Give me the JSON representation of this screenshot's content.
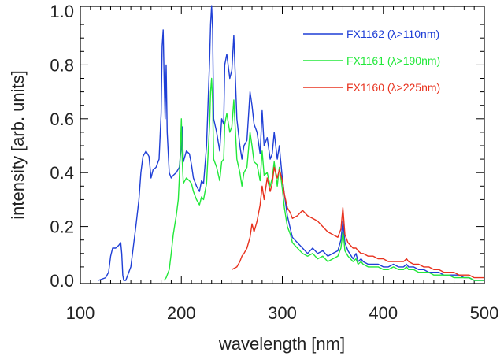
{
  "chart_data": {
    "type": "line",
    "xlabel": "wavelength [nm]",
    "ylabel": "intensity [arb. units]",
    "xlim": [
      100,
      500
    ],
    "ylim": [
      0,
      1.0
    ],
    "x_ticks": [
      100,
      200,
      300,
      400,
      500
    ],
    "x_tick_labels": [
      "100",
      "200",
      "300",
      "400",
      "500"
    ],
    "y_ticks": [
      0.0,
      0.2,
      0.4,
      0.6,
      0.8,
      1.0
    ],
    "y_tick_labels": [
      "0.0",
      "0.2",
      "0.4",
      "0.6",
      "0.8",
      "1.0"
    ],
    "grid": false,
    "legend_position": "top-right",
    "series": [
      {
        "name": "FX1162 (λ>110nm)",
        "color": "#1f3fd6",
        "x": [
          118,
          125,
          128,
          130,
          132,
          135,
          138,
          140,
          141,
          142,
          143,
          145,
          150,
          155,
          158,
          160,
          162,
          165,
          168,
          170,
          172,
          175,
          178,
          180,
          181,
          182,
          183,
          184,
          185,
          186,
          188,
          190,
          192,
          195,
          198,
          200,
          201,
          202,
          205,
          208,
          210,
          212,
          215,
          218,
          220,
          222,
          225,
          228,
          229,
          230,
          231,
          232,
          235,
          238,
          240,
          242,
          243,
          245,
          248,
          250,
          252,
          255,
          258,
          260,
          262,
          265,
          268,
          270,
          272,
          275,
          278,
          280,
          282,
          285,
          288,
          290,
          292,
          295,
          297,
          298,
          300,
          302,
          305,
          308,
          310,
          315,
          320,
          325,
          330,
          335,
          340,
          345,
          350,
          355,
          358,
          360,
          361,
          362,
          365,
          370,
          373,
          375,
          378,
          380,
          385,
          390,
          395,
          400,
          405,
          410,
          415,
          420,
          423,
          425,
          430,
          435,
          440,
          445,
          450,
          455,
          460,
          465,
          470,
          475,
          480,
          485,
          490,
          495,
          500
        ],
        "y": [
          0.0,
          0.01,
          0.03,
          0.09,
          0.12,
          0.12,
          0.13,
          0.14,
          0.1,
          0.02,
          0.0,
          0.0,
          0.05,
          0.2,
          0.3,
          0.4,
          0.46,
          0.48,
          0.46,
          0.38,
          0.41,
          0.42,
          0.45,
          0.62,
          0.87,
          0.93,
          0.75,
          0.6,
          0.8,
          0.55,
          0.4,
          0.38,
          0.39,
          0.4,
          0.42,
          0.5,
          0.57,
          0.44,
          0.48,
          0.47,
          0.43,
          0.38,
          0.35,
          0.33,
          0.37,
          0.36,
          0.5,
          0.82,
          0.95,
          1.02,
          0.93,
          0.6,
          0.55,
          0.48,
          0.6,
          0.58,
          0.8,
          0.84,
          0.75,
          0.78,
          0.91,
          0.6,
          0.5,
          0.45,
          0.5,
          0.52,
          0.7,
          0.65,
          0.58,
          0.55,
          0.47,
          0.63,
          0.5,
          0.53,
          0.45,
          0.47,
          0.55,
          0.45,
          0.5,
          0.46,
          0.38,
          0.32,
          0.24,
          0.19,
          0.16,
          0.14,
          0.12,
          0.1,
          0.12,
          0.1,
          0.11,
          0.09,
          0.1,
          0.11,
          0.15,
          0.22,
          0.18,
          0.14,
          0.11,
          0.08,
          0.1,
          0.07,
          0.08,
          0.07,
          0.06,
          0.06,
          0.06,
          0.05,
          0.05,
          0.06,
          0.05,
          0.05,
          0.06,
          0.05,
          0.05,
          0.04,
          0.04,
          0.03,
          0.03,
          0.03,
          0.02,
          0.02,
          0.02,
          0.02,
          0.01,
          0.01,
          0.0,
          0.0,
          0.0
        ]
      },
      {
        "name": "FX1161 (λ>190nm)",
        "color": "#22e83a",
        "x": [
          183,
          185,
          188,
          190,
          192,
          195,
          197,
          198,
          199,
          200,
          201,
          202,
          205,
          208,
          210,
          212,
          215,
          218,
          220,
          222,
          225,
          228,
          229,
          230,
          231,
          232,
          235,
          238,
          240,
          242,
          243,
          245,
          248,
          250,
          252,
          255,
          258,
          260,
          262,
          265,
          268,
          270,
          272,
          275,
          278,
          280,
          282,
          285,
          288,
          290,
          292,
          295,
          297,
          298,
          300,
          302,
          305,
          308,
          310,
          315,
          320,
          325,
          330,
          335,
          340,
          345,
          350,
          355,
          358,
          360,
          361,
          362,
          365,
          370,
          373,
          375,
          378,
          380,
          385,
          390,
          395,
          400,
          405,
          410,
          415,
          420,
          423,
          425,
          430,
          435,
          440,
          445,
          450,
          455,
          460,
          465,
          470,
          475,
          480,
          485,
          490,
          495,
          500
        ],
        "y": [
          0.0,
          0.01,
          0.04,
          0.1,
          0.17,
          0.24,
          0.3,
          0.38,
          0.48,
          0.6,
          0.44,
          0.36,
          0.38,
          0.37,
          0.36,
          0.33,
          0.3,
          0.28,
          0.31,
          0.3,
          0.36,
          0.58,
          0.7,
          0.75,
          0.66,
          0.45,
          0.42,
          0.37,
          0.44,
          0.45,
          0.58,
          0.62,
          0.55,
          0.57,
          0.67,
          0.45,
          0.4,
          0.35,
          0.4,
          0.42,
          0.55,
          0.5,
          0.44,
          0.43,
          0.37,
          0.48,
          0.39,
          0.4,
          0.35,
          0.38,
          0.44,
          0.35,
          0.42,
          0.4,
          0.34,
          0.27,
          0.2,
          0.17,
          0.14,
          0.12,
          0.1,
          0.09,
          0.1,
          0.08,
          0.09,
          0.07,
          0.08,
          0.09,
          0.12,
          0.18,
          0.15,
          0.11,
          0.09,
          0.07,
          0.08,
          0.06,
          0.07,
          0.06,
          0.05,
          0.05,
          0.05,
          0.04,
          0.04,
          0.05,
          0.04,
          0.04,
          0.05,
          0.04,
          0.04,
          0.03,
          0.03,
          0.03,
          0.02,
          0.02,
          0.02,
          0.02,
          0.01,
          0.01,
          0.01,
          0.01,
          0.0,
          0.0,
          0.0
        ]
      },
      {
        "name": "FX1160 (λ>225nm)",
        "color": "#e8321e",
        "x": [
          250,
          255,
          258,
          260,
          262,
          265,
          268,
          270,
          272,
          275,
          278,
          280,
          282,
          285,
          288,
          290,
          292,
          295,
          297,
          298,
          300,
          302,
          305,
          308,
          310,
          315,
          320,
          325,
          330,
          335,
          340,
          345,
          350,
          355,
          358,
          360,
          361,
          362,
          365,
          370,
          373,
          375,
          378,
          380,
          385,
          390,
          395,
          400,
          405,
          410,
          415,
          420,
          423,
          425,
          430,
          435,
          440,
          445,
          450,
          455,
          460,
          465,
          470,
          475,
          480,
          485,
          490,
          495,
          500
        ],
        "y": [
          0.04,
          0.05,
          0.07,
          0.09,
          0.1,
          0.12,
          0.16,
          0.21,
          0.18,
          0.22,
          0.28,
          0.35,
          0.3,
          0.38,
          0.33,
          0.36,
          0.42,
          0.38,
          0.41,
          0.4,
          0.37,
          0.32,
          0.27,
          0.25,
          0.23,
          0.24,
          0.26,
          0.24,
          0.23,
          0.22,
          0.2,
          0.18,
          0.17,
          0.16,
          0.19,
          0.27,
          0.22,
          0.17,
          0.14,
          0.12,
          0.12,
          0.11,
          0.1,
          0.1,
          0.09,
          0.09,
          0.08,
          0.08,
          0.07,
          0.07,
          0.07,
          0.07,
          0.08,
          0.07,
          0.06,
          0.06,
          0.05,
          0.05,
          0.04,
          0.04,
          0.03,
          0.03,
          0.03,
          0.02,
          0.02,
          0.02,
          0.01,
          0.01,
          0.01
        ]
      }
    ]
  }
}
